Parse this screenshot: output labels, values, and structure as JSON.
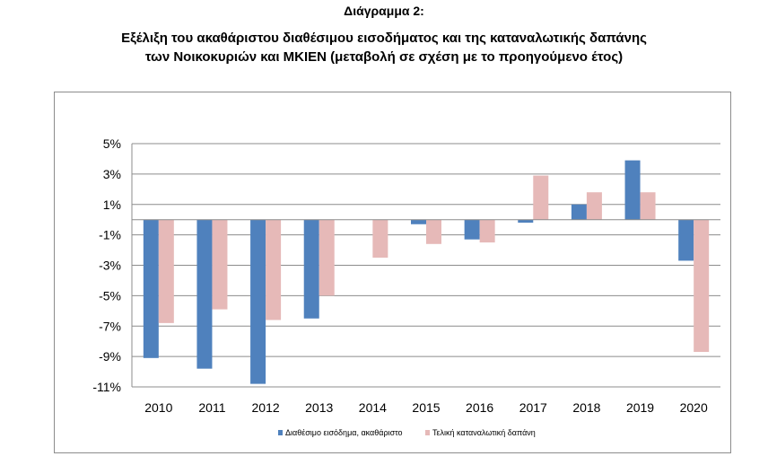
{
  "header": {
    "subtitle": "Διάγραμμα 2:",
    "title_line1": "Εξέλιξη του ακαθάριστου διαθέσιμου εισοδήματος και της καταναλωτικής δαπάνης",
    "title_line2": "των Νοικοκυριών και ΜΚΙΕΝ (μεταβολή σε σχέση με το προηγούμενο έτος)"
  },
  "chart_data": {
    "type": "bar",
    "title": "Εξέλιξη του ακαθάριστου διαθέσιμου εισοδήματος και της καταναλωτικής δαπάνης των Νοικοκυριών και ΜΚΙΕΝ (μεταβολή σε σχέση με το προηγούμενο έτος)",
    "xlabel": "",
    "ylabel": "",
    "categories": [
      "2010",
      "2011",
      "2012",
      "2013",
      "2014",
      "2015",
      "2016",
      "2017",
      "2018",
      "2019",
      "2020"
    ],
    "series": [
      {
        "name": "Διαθέσιμο εισόδημα, ακαθάριστο",
        "color": "#4f81bd",
        "values": [
          -9.1,
          -9.8,
          -10.8,
          -6.5,
          0.0,
          -0.3,
          -1.3,
          -0.2,
          1.0,
          3.9,
          -2.7
        ]
      },
      {
        "name": "Τελική καταναλωτική δαπάνη",
        "color": "#e6b9b8",
        "values": [
          -6.8,
          -5.9,
          -6.6,
          -5.0,
          -2.5,
          -1.6,
          -1.5,
          2.9,
          1.8,
          1.8,
          -8.7
        ]
      }
    ],
    "ylim": [
      -11,
      5
    ],
    "yticks": [
      5,
      3,
      1,
      -1,
      -3,
      -5,
      -7,
      -9,
      -11
    ],
    "ytick_labels": [
      "5%",
      "3%",
      "1%",
      "-1%",
      "-3%",
      "-5%",
      "-7%",
      "-9%",
      "-11%"
    ],
    "grid": true,
    "legend": "bottom"
  }
}
